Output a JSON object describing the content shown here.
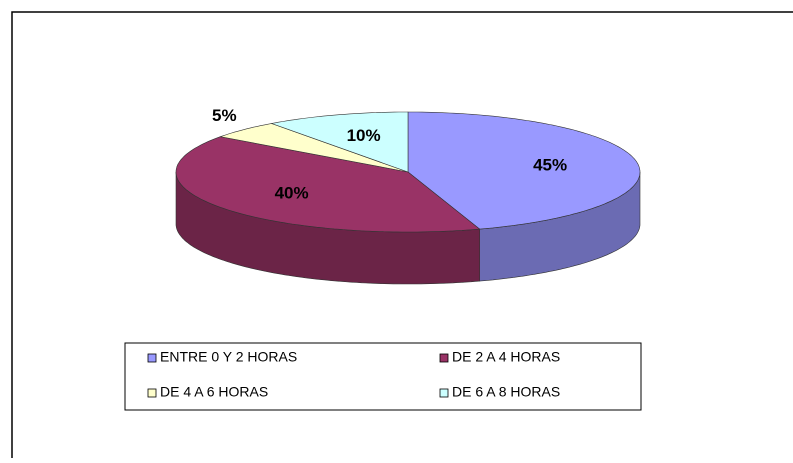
{
  "chart_data": {
    "type": "pie",
    "categories": [
      "ENTRE 0 Y 2 HORAS",
      "DE 2 A 4 HORAS",
      "DE 4 A 6 HORAS",
      "DE 6 A 8 HORAS"
    ],
    "values": [
      45,
      40,
      5,
      10
    ],
    "value_labels": [
      "45%",
      "40%",
      "5%",
      "10%"
    ],
    "colors": [
      "#9999ff",
      "#993366",
      "#ffffcc",
      "#ccffff"
    ],
    "legend": "bottom"
  }
}
